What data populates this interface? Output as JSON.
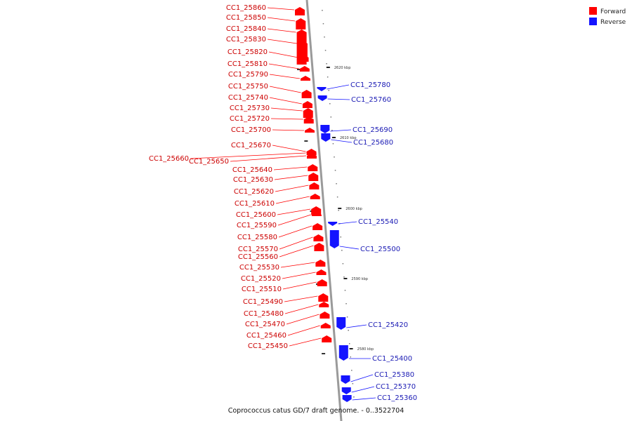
{
  "colors": {
    "forward": "#ff0000",
    "reverse": "#1414ff",
    "axis": "#9a9a9a",
    "forward_text": "#cc0000",
    "reverse_text": "#1a1ab4"
  },
  "legend": {
    "forward": "Forward",
    "reverse": "Reverse"
  },
  "caption": "Coprococcus catus GD/7 draft genome. - 0..3522704",
  "ticks": [
    "2620 kbp",
    "2610 kbp",
    "2600 kbp",
    "2590 kbp",
    "2580 kbp"
  ],
  "forward_genes": [
    "CC1_25860",
    "CC1_25850",
    "CC1_25840",
    "CC1_25830",
    "CC1_25820",
    "CC1_25810",
    "CC1_25790",
    "CC1_25750",
    "CC1_25740",
    "CC1_25730",
    "CC1_25720",
    "CC1_25700",
    "CC1_25670",
    "CC1_25660",
    "CC1_25650",
    "CC1_25640",
    "CC1_25630",
    "CC1_25620",
    "CC1_25610",
    "CC1_25600",
    "CC1_25590",
    "CC1_25580",
    "CC1_25570",
    "CC1_25560",
    "CC1_25530",
    "CC1_25520",
    "CC1_25510",
    "CC1_25490",
    "CC1_25480",
    "CC1_25470",
    "CC1_25460",
    "CC1_25450"
  ],
  "reverse_genes": [
    "CC1_25780",
    "CC1_25760",
    "CC1_25690",
    "CC1_25680",
    "CC1_25540",
    "CC1_25500",
    "CC1_25420",
    "CC1_25400",
    "CC1_25380",
    "CC1_25370",
    "CC1_25360"
  ]
}
